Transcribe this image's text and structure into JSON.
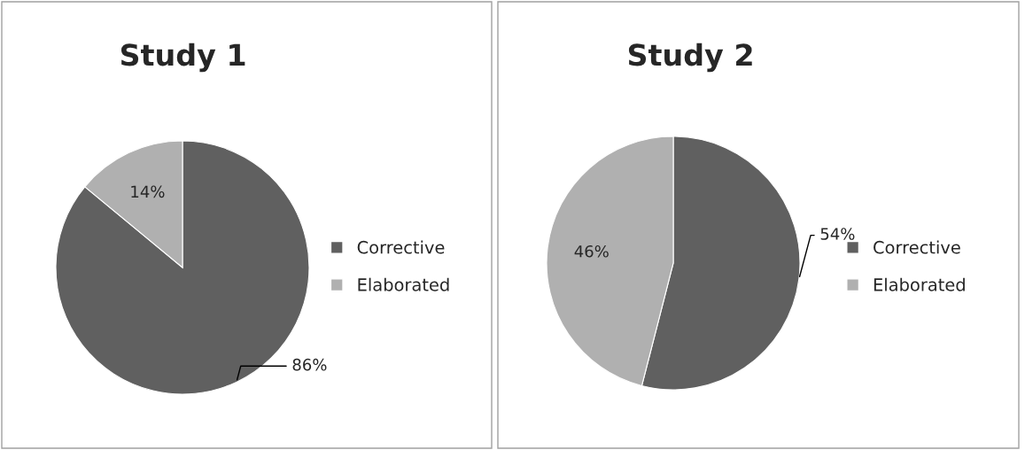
{
  "chart_data": [
    {
      "type": "pie",
      "title": "Study 1",
      "categories": [
        "Corrective",
        "Elaborated"
      ],
      "values": [
        86,
        14
      ],
      "value_labels": [
        "86%",
        "14%"
      ],
      "colors": [
        "#606060",
        "#b0b0b0"
      ],
      "legend": "right"
    },
    {
      "type": "pie",
      "title": "Study 2",
      "categories": [
        "Corrective",
        "Elaborated"
      ],
      "values": [
        54,
        46
      ],
      "value_labels": [
        "54%",
        "46%"
      ],
      "colors": [
        "#606060",
        "#b0b0b0"
      ],
      "legend": "right"
    }
  ]
}
